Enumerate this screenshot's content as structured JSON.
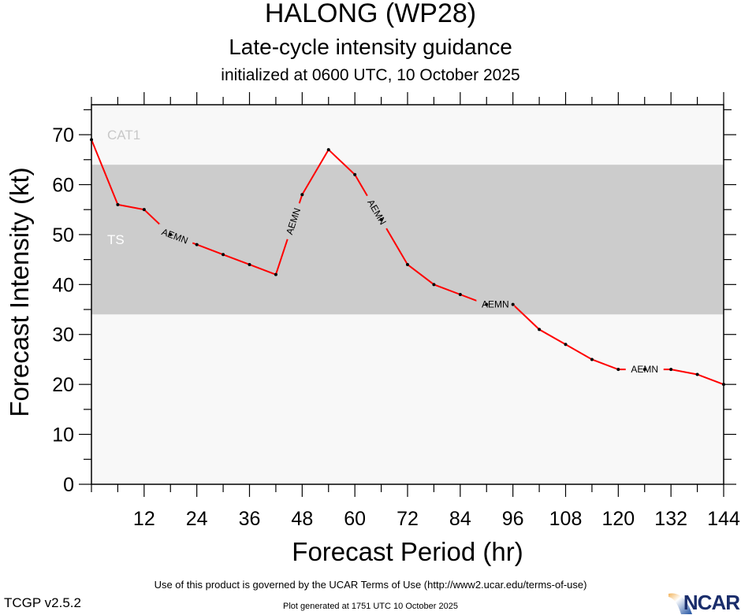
{
  "chart_data": {
    "type": "line",
    "title": "HALONG (WP28)",
    "subtitle": "Late-cycle intensity guidance",
    "subsubtitle": "initialized at 0600 UTC, 10 October 2025",
    "xlabel": "Forecast Period (hr)",
    "ylabel": "Forecast Intensity (kt)",
    "xlim": [
      0,
      144
    ],
    "ylim": [
      0,
      76
    ],
    "x_ticks": [
      12,
      24,
      36,
      48,
      60,
      72,
      84,
      96,
      108,
      120,
      132,
      144
    ],
    "x_minor_step": 6,
    "y_ticks": [
      0,
      10,
      20,
      30,
      40,
      50,
      60,
      70
    ],
    "y_minor_step": 5,
    "grid": false,
    "bands": [
      {
        "name": "TS",
        "label": "TS",
        "from": 34,
        "to": 64,
        "color": "#cccccc",
        "label_color": "#ffffff",
        "label_y": 49
      },
      {
        "name": "CAT1",
        "label": "CAT1",
        "from": 64,
        "to": 76,
        "color": "#f8f8f8",
        "label_color": "#c8c8c8",
        "label_y": 70
      }
    ],
    "series": [
      {
        "name": "AEMN",
        "color": "#ff0000",
        "x": [
          0,
          6,
          12,
          18,
          24,
          30,
          36,
          42,
          48,
          54,
          60,
          66,
          72,
          78,
          84,
          90,
          96,
          102,
          108,
          114,
          120,
          126,
          132,
          138,
          144
        ],
        "values": [
          69,
          56,
          55,
          50,
          48,
          46,
          44,
          42,
          58,
          67,
          62,
          53,
          44,
          40,
          38,
          36,
          36,
          31,
          28,
          25,
          23,
          23,
          23,
          22,
          20
        ],
        "labels_at_x": [
          19,
          46,
          65,
          92,
          126
        ]
      }
    ]
  },
  "footer": {
    "terms": "Use of this product is governed by the UCAR Terms of Use (http://www2.ucar.edu/terms-of-use)",
    "generated": "Plot generated at 1751 UTC   10 October 2025",
    "version": "TCGP v2.5.2",
    "logo": "NCAR"
  }
}
